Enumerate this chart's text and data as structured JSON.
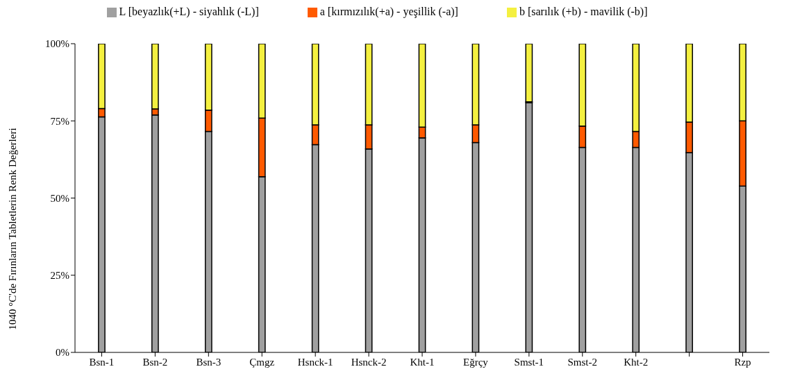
{
  "chart_data": {
    "type": "bar",
    "stacked": true,
    "ylabel": "1040 °C'de Fırınların Tabletlerin Renk Değerleri",
    "categories": [
      "Bsn-1",
      "Bsn-2",
      "Bsn-3",
      "Çmgz",
      "Hsnck-1",
      "Hsnck-2",
      "Kht-1",
      "Eğrçy",
      "Smst-1",
      "Smst-2",
      "Kht-2",
      null,
      "Rzp"
    ],
    "series": [
      {
        "name": "L [beyazlık(+L) - siyahlık (-L)]",
        "color": "#a0a0a0",
        "values": [
          76.3,
          76.9,
          71.6,
          56.9,
          67.3,
          65.9,
          69.5,
          68.0,
          80.9,
          66.4,
          66.4,
          64.7,
          53.9
        ]
      },
      {
        "name": "a [kırmızılık(+a) - yeşillik (-a)]",
        "color": "#ff5a00",
        "values": [
          2.7,
          2.0,
          6.9,
          19.0,
          6.4,
          7.8,
          3.5,
          5.7,
          0.3,
          6.9,
          5.2,
          9.9,
          21.1
        ]
      },
      {
        "name": "b [sarılık (+b) - mavilik (-b)]",
        "color": "#f4f040",
        "values": [
          21.0,
          21.1,
          21.5,
          24.1,
          26.3,
          26.3,
          27.0,
          26.3,
          18.8,
          26.7,
          28.4,
          25.4,
          25.0
        ]
      }
    ],
    "ylim": [
      0,
      100
    ],
    "yticks": [
      {
        "value": 0,
        "label": "0%"
      },
      {
        "value": 25,
        "label": "25%"
      },
      {
        "value": 50,
        "label": "50%"
      },
      {
        "value": 75,
        "label": "75%"
      },
      {
        "value": 100,
        "label": "100%"
      }
    ],
    "grid": false,
    "legend": "top"
  }
}
